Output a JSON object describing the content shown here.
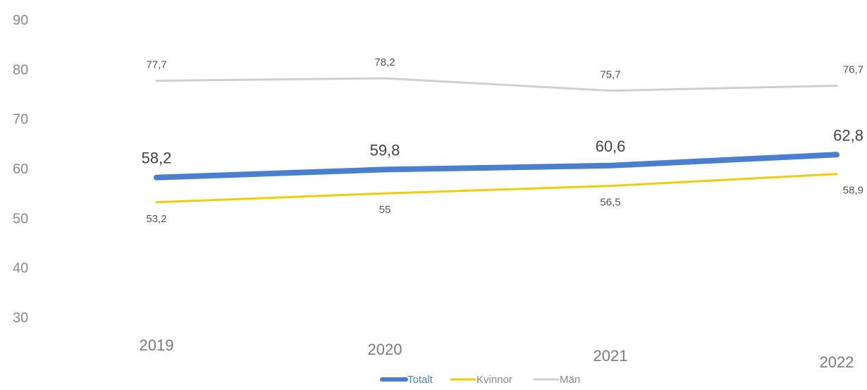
{
  "chart_data": {
    "type": "line",
    "categories": [
      "2019",
      "2020",
      "2021",
      "2022"
    ],
    "y_ticks": [
      "90",
      "80",
      "70",
      "60",
      "50",
      "40",
      "30"
    ],
    "ylim": [
      30,
      90
    ],
    "grid": false,
    "legend_position": "bottom",
    "series": [
      {
        "name": "Totalt",
        "color": "#4a7fd0",
        "values": [
          58.2,
          59.8,
          60.6,
          62.8
        ],
        "labels": [
          "58,2",
          "59,8",
          "60,6",
          "62,8"
        ]
      },
      {
        "name": "Kvinnor",
        "color": "#f2cc0c",
        "values": [
          53.2,
          55,
          56.5,
          58.9
        ],
        "labels": [
          "53,2",
          "55",
          "56,5",
          "58,9"
        ]
      },
      {
        "name": "Män",
        "color": "#cfcfcf",
        "values": [
          77.7,
          78.2,
          75.7,
          76.7
        ],
        "labels": [
          "77,7",
          "78,2",
          "75,7",
          "76,7"
        ]
      }
    ]
  }
}
